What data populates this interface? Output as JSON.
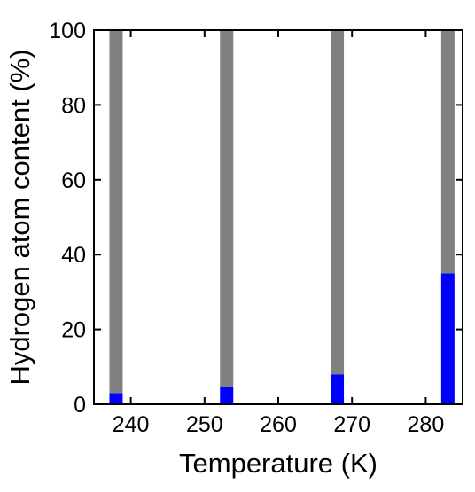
{
  "chart_data": {
    "type": "bar",
    "stacked": true,
    "title": "",
    "xlabel": "Temperature (K)",
    "ylabel": "Hydrogen atom content (%)",
    "x": [
      238,
      253,
      268,
      283
    ],
    "xlim": [
      235,
      285
    ],
    "ylim": [
      0,
      100
    ],
    "xticks": [
      240,
      250,
      260,
      270,
      280
    ],
    "yticks": [
      0,
      20,
      40,
      60,
      80,
      100
    ],
    "grid": false,
    "legend": "none",
    "series": [
      {
        "color": "#0000ff",
        "values": [
          3,
          4.5,
          8,
          35
        ]
      },
      {
        "color": "#808080",
        "values": [
          97,
          95.5,
          92,
          65
        ]
      }
    ]
  }
}
